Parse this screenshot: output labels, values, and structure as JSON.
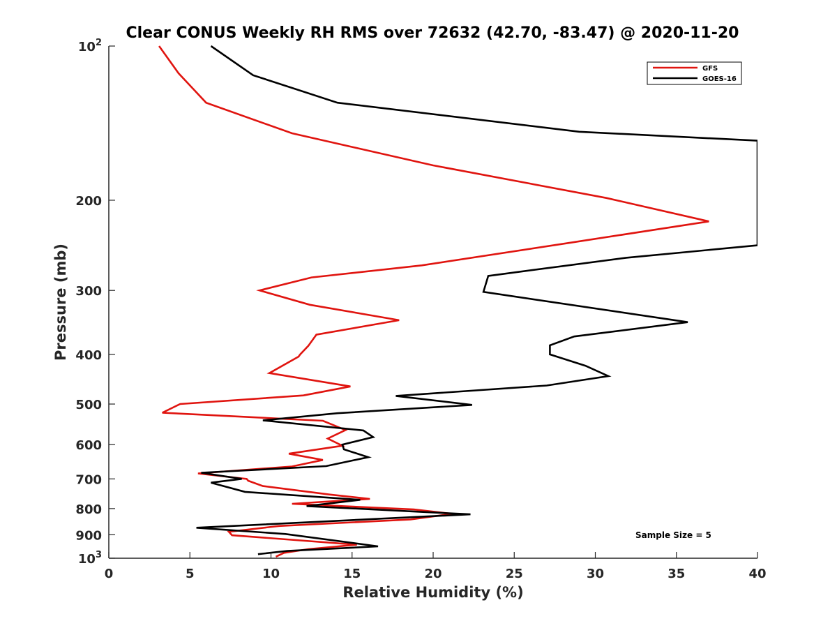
{
  "chart_data": {
    "type": "line",
    "title": "Clear CONUS Weekly RH RMS over 72632 (42.70, -83.47) @ 2020-11-20",
    "xlabel": "Relative Humidity (%)",
    "ylabel": "Pressure (mb)",
    "xlim": [
      0,
      40
    ],
    "ylim": [
      100,
      1000
    ],
    "yscale": "log",
    "y_reversed": true,
    "grid": false,
    "legend_position": "top-right",
    "x_ticks": [
      0,
      5,
      10,
      15,
      20,
      25,
      30,
      35,
      40
    ],
    "x_tick_labels": [
      "0",
      "5",
      "10",
      "15",
      "20",
      "25",
      "30",
      "35",
      "40"
    ],
    "y_ticks": [
      100,
      200,
      300,
      400,
      500,
      600,
      700,
      800,
      900,
      1000
    ],
    "y_tick_labels": [
      {
        "base": "10",
        "exp": "2"
      },
      {
        "base": "200",
        "exp": ""
      },
      {
        "base": "300",
        "exp": ""
      },
      {
        "base": "400",
        "exp": ""
      },
      {
        "base": "500",
        "exp": ""
      },
      {
        "base": "600",
        "exp": ""
      },
      {
        "base": "700",
        "exp": ""
      },
      {
        "base": "800",
        "exp": ""
      },
      {
        "base": "900",
        "exp": ""
      },
      {
        "base": "10",
        "exp": "3"
      }
    ],
    "annotation": "Sample Size = 5",
    "series": [
      {
        "name": "GFS",
        "color": "#e0140f",
        "points": [
          [
            3.1,
            100
          ],
          [
            4.3,
            113
          ],
          [
            6.0,
            129
          ],
          [
            11.3,
            148
          ],
          [
            20.0,
            171
          ],
          [
            30.7,
            198
          ],
          [
            37.0,
            220
          ],
          [
            28.5,
            242
          ],
          [
            19.3,
            268
          ],
          [
            12.5,
            283
          ],
          [
            9.3,
            300
          ],
          [
            12.4,
            320
          ],
          [
            17.9,
            343
          ],
          [
            12.8,
            366
          ],
          [
            12.3,
            385
          ],
          [
            11.8,
            400
          ],
          [
            11.7,
            404
          ],
          [
            9.9,
            435
          ],
          [
            14.9,
            462
          ],
          [
            12.0,
            481
          ],
          [
            4.4,
            500
          ],
          [
            3.3,
            520
          ],
          [
            13.2,
            539
          ],
          [
            14.6,
            562
          ],
          [
            13.5,
            584
          ],
          [
            14.4,
            603
          ],
          [
            11.1,
            625
          ],
          [
            13.2,
            643
          ],
          [
            11.3,
            662
          ],
          [
            5.5,
            683
          ],
          [
            8.5,
            700
          ],
          [
            8.6,
            706
          ],
          [
            9.5,
            723
          ],
          [
            13.6,
            751
          ],
          [
            16.1,
            766
          ],
          [
            11.3,
            783
          ],
          [
            18.8,
            803
          ],
          [
            21.2,
            819
          ],
          [
            18.6,
            840
          ],
          [
            10.5,
            865
          ],
          [
            7.4,
            888
          ],
          [
            7.6,
            902
          ],
          [
            15.3,
            941
          ],
          [
            12.3,
            960
          ],
          [
            10.8,
            976
          ],
          [
            10.3,
            993
          ]
        ]
      },
      {
        "name": "GOES-16",
        "color": "#000000",
        "points": [
          [
            6.3,
            100
          ],
          [
            8.9,
            114
          ],
          [
            14.1,
            129
          ],
          [
            29.0,
            147
          ],
          [
            40.0,
            153
          ],
          [
            40.0,
            245
          ],
          [
            31.9,
            259
          ],
          [
            23.4,
            281
          ],
          [
            23.1,
            302
          ],
          [
            35.7,
            346
          ],
          [
            28.7,
            369
          ],
          [
            27.2,
            384
          ],
          [
            27.2,
            400
          ],
          [
            29.4,
            421
          ],
          [
            30.8,
            441
          ],
          [
            27.0,
            460
          ],
          [
            17.7,
            482
          ],
          [
            22.4,
            502
          ],
          [
            14.1,
            521
          ],
          [
            9.5,
            538
          ],
          [
            15.7,
            563
          ],
          [
            16.3,
            580
          ],
          [
            14.4,
            600
          ],
          [
            14.5,
            613
          ],
          [
            16.0,
            635
          ],
          [
            13.4,
            661
          ],
          [
            5.7,
            681
          ],
          [
            8.2,
            700
          ],
          [
            6.3,
            712
          ],
          [
            8.4,
            742
          ],
          [
            15.5,
            769
          ],
          [
            12.2,
            791
          ],
          [
            22.3,
            821
          ],
          [
            5.4,
            872
          ],
          [
            10.9,
            897
          ],
          [
            16.6,
            948
          ],
          [
            11.0,
            968
          ],
          [
            9.2,
            982
          ]
        ]
      }
    ]
  }
}
